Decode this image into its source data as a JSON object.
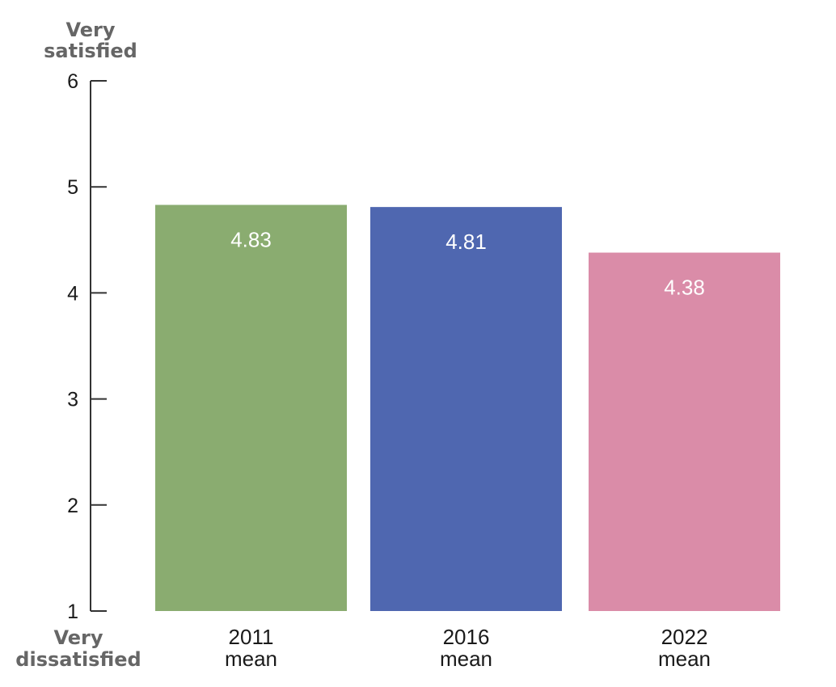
{
  "chart_data": {
    "type": "bar",
    "categories": [
      "2011 mean",
      "2016 mean",
      "2022 mean"
    ],
    "category_lines": [
      [
        "2011",
        "mean"
      ],
      [
        "2016",
        "mean"
      ],
      [
        "2022",
        "mean"
      ]
    ],
    "values": [
      4.83,
      4.81,
      4.38
    ],
    "value_labels": [
      "4.83",
      "4.81",
      "4.38"
    ],
    "colors": [
      "#8aac70",
      "#4f67b0",
      "#da8ca8"
    ],
    "ylim": [
      1,
      6
    ],
    "yticks": [
      1,
      2,
      3,
      4,
      5,
      6
    ],
    "y_top_label": [
      "Very",
      "satisfied"
    ],
    "y_bottom_label": [
      "Very",
      "dissatisfied"
    ],
    "grid": false,
    "legend": "none"
  }
}
